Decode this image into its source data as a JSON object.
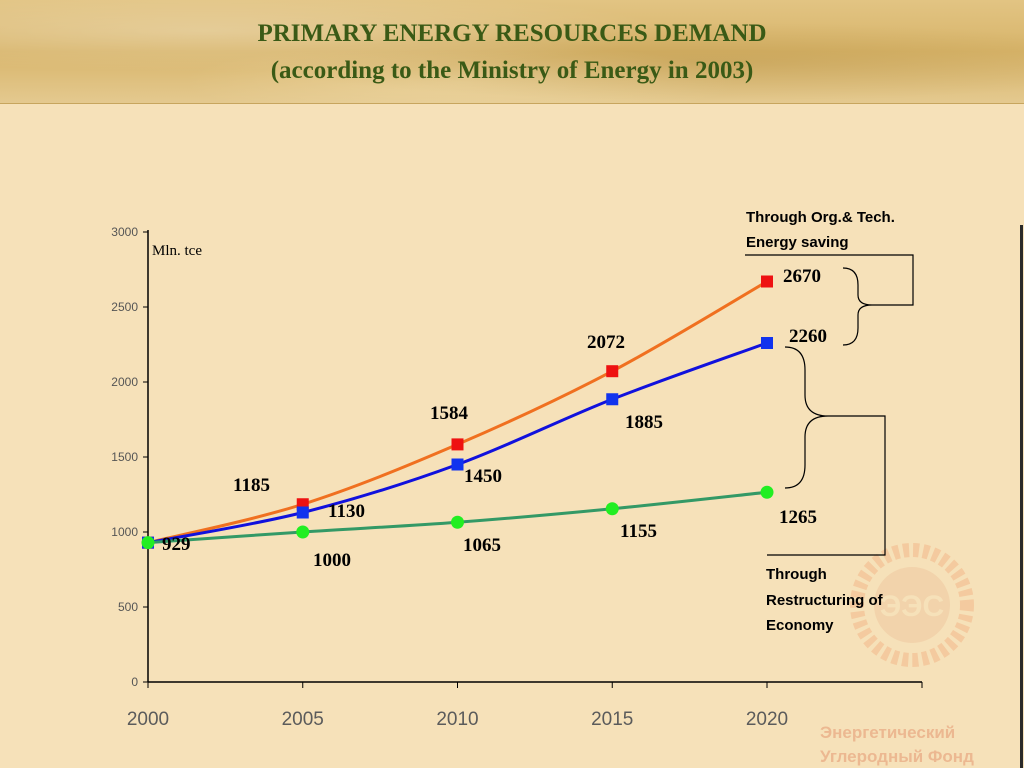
{
  "title_line1": "PRIMARY ENERGY RESOURCES DEMAND",
  "title_line2": "(according to the Ministry of Energy in 2003)",
  "annotations": {
    "saving_line1": "Through Org.& Tech.",
    "saving_line2": "Energy saving",
    "restructuring_line1": "Through",
    "restructuring_line2": "Restructuring of",
    "restructuring_line3": "Economy"
  },
  "watermark": {
    "logo_text": "ЭЭС",
    "line1": "Энергетический",
    "line2": "Углеродный Фонд"
  },
  "chart_data": {
    "type": "line",
    "title": "PRIMARY ENERGY RESOURCES DEMAND (according to the Ministry of Energy in 2003)",
    "ylabel": "Mln. tce",
    "xlabel": "",
    "x": [
      2000,
      2005,
      2010,
      2015,
      2020
    ],
    "x_tick_labels": [
      "2000",
      "2005",
      "2010",
      "2015",
      "2020"
    ],
    "y_ticks": [
      0,
      500,
      1000,
      1500,
      2000,
      2500,
      3000
    ],
    "ylim": [
      0,
      3000
    ],
    "grid": false,
    "series": [
      {
        "color": "#f07020",
        "marker": "square",
        "marker_color": "#ee1111",
        "values": [
          929,
          1185,
          1584,
          2072,
          2670
        ],
        "labels": [
          "929",
          "1185",
          "1584",
          "2072",
          "2670"
        ]
      },
      {
        "color": "#1111dd",
        "marker": "square",
        "marker_color": "#1133ee",
        "values": [
          929,
          1130,
          1450,
          1885,
          2260
        ],
        "labels": [
          "929",
          "1130",
          "1450",
          "1885",
          "2260"
        ]
      },
      {
        "color": "#339966",
        "marker": "circle",
        "marker_color": "#22ee22",
        "values": [
          929,
          1000,
          1065,
          1155,
          1265
        ],
        "labels": [
          "929",
          "1000",
          "1065",
          "1155",
          "1265"
        ]
      }
    ]
  }
}
